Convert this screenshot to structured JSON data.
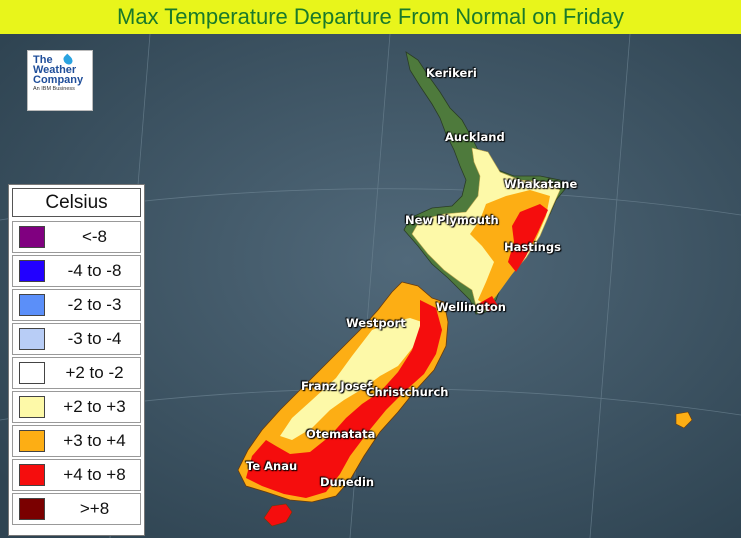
{
  "title": "Max Temperature Departure From Normal on Friday",
  "logo": {
    "line1": "The",
    "line2": "Weather",
    "line3": "Company",
    "line4": "An IBM Business",
    "icon": "water-drop-icon"
  },
  "legend": {
    "title": "Celsius",
    "items": [
      {
        "label": "<-8",
        "color": "#800080"
      },
      {
        "label": "-4 to -8",
        "color": "#2200ff"
      },
      {
        "label": "-2 to -3",
        "color": "#5b8ff9"
      },
      {
        "label": "-3 to -4",
        "color": "#b8cdf6"
      },
      {
        "label": "+2 to -2",
        "color": "#ffffff"
      },
      {
        "label": "+2 to +3",
        "color": "#fdf9a8"
      },
      {
        "label": "+3 to +4",
        "color": "#fdae14"
      },
      {
        "label": "+4 to +8",
        "color": "#f50d0d"
      },
      {
        "label": ">+8",
        "color": "#7a0000"
      }
    ]
  },
  "cities": [
    {
      "id": "kerikeri",
      "label": "Kerikeri"
    },
    {
      "id": "auckland",
      "label": "Auckland"
    },
    {
      "id": "whakatane",
      "label": "Whakatane"
    },
    {
      "id": "new-plymouth",
      "label": "New Plymouth"
    },
    {
      "id": "hastings",
      "label": "Hastings"
    },
    {
      "id": "wellington",
      "label": "Wellington"
    },
    {
      "id": "westport",
      "label": "Westport"
    },
    {
      "id": "franz-josef",
      "label": "Franz Josef"
    },
    {
      "id": "christchurch",
      "label": "Christchurch"
    },
    {
      "id": "otematata",
      "label": "Otematata"
    },
    {
      "id": "te-anau",
      "label": "Te Anau"
    },
    {
      "id": "dunedin",
      "label": "Dunedin"
    }
  ]
}
